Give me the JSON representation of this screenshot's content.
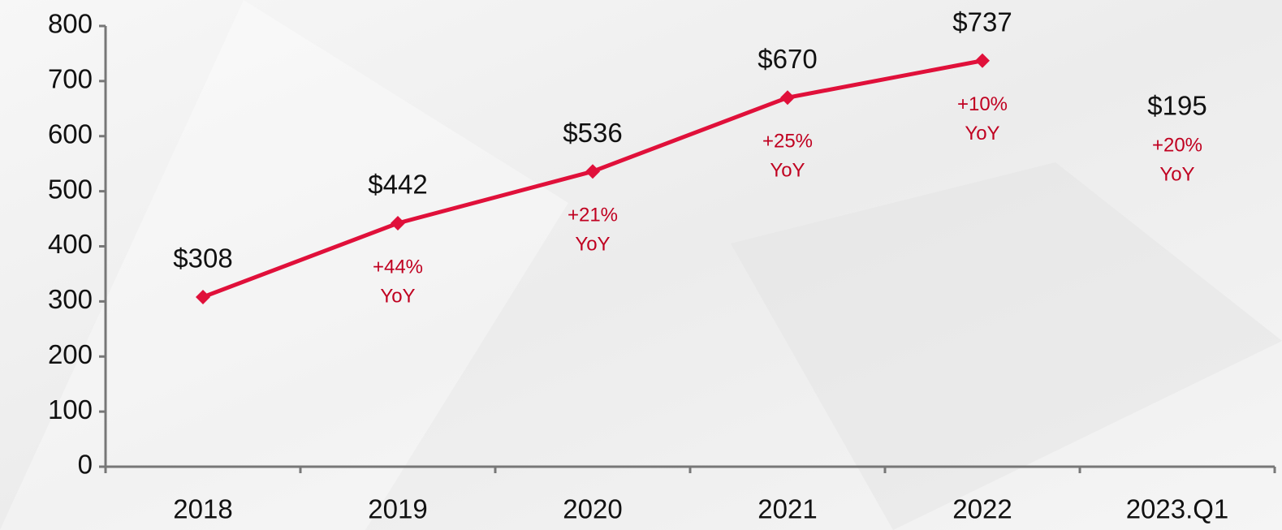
{
  "chart_data": {
    "type": "line",
    "categories": [
      "2018",
      "2019",
      "2020",
      "2021",
      "2022",
      "2023.Q1"
    ],
    "series": [
      {
        "color": "#e0103a",
        "values": [
          308,
          442,
          536,
          670,
          737,
          null
        ],
        "value_labels": [
          "$308",
          "$442",
          "$536",
          "$670",
          "$737",
          null
        ]
      }
    ],
    "ylim": [
      0,
      800
    ],
    "yticks": [
      0,
      100,
      200,
      300,
      400,
      500,
      600,
      700,
      800
    ],
    "growth": [
      null,
      {
        "value": 44,
        "label": "+44%"
      },
      {
        "value": 21,
        "label": "+21%"
      },
      {
        "value": 25,
        "label": "+25%"
      },
      {
        "value": 10,
        "label": "+10%"
      },
      {
        "value": 20,
        "label": "+20%"
      }
    ],
    "growth_suffix": "YoY",
    "latest": {
      "value": 195,
      "label": "$195"
    }
  }
}
